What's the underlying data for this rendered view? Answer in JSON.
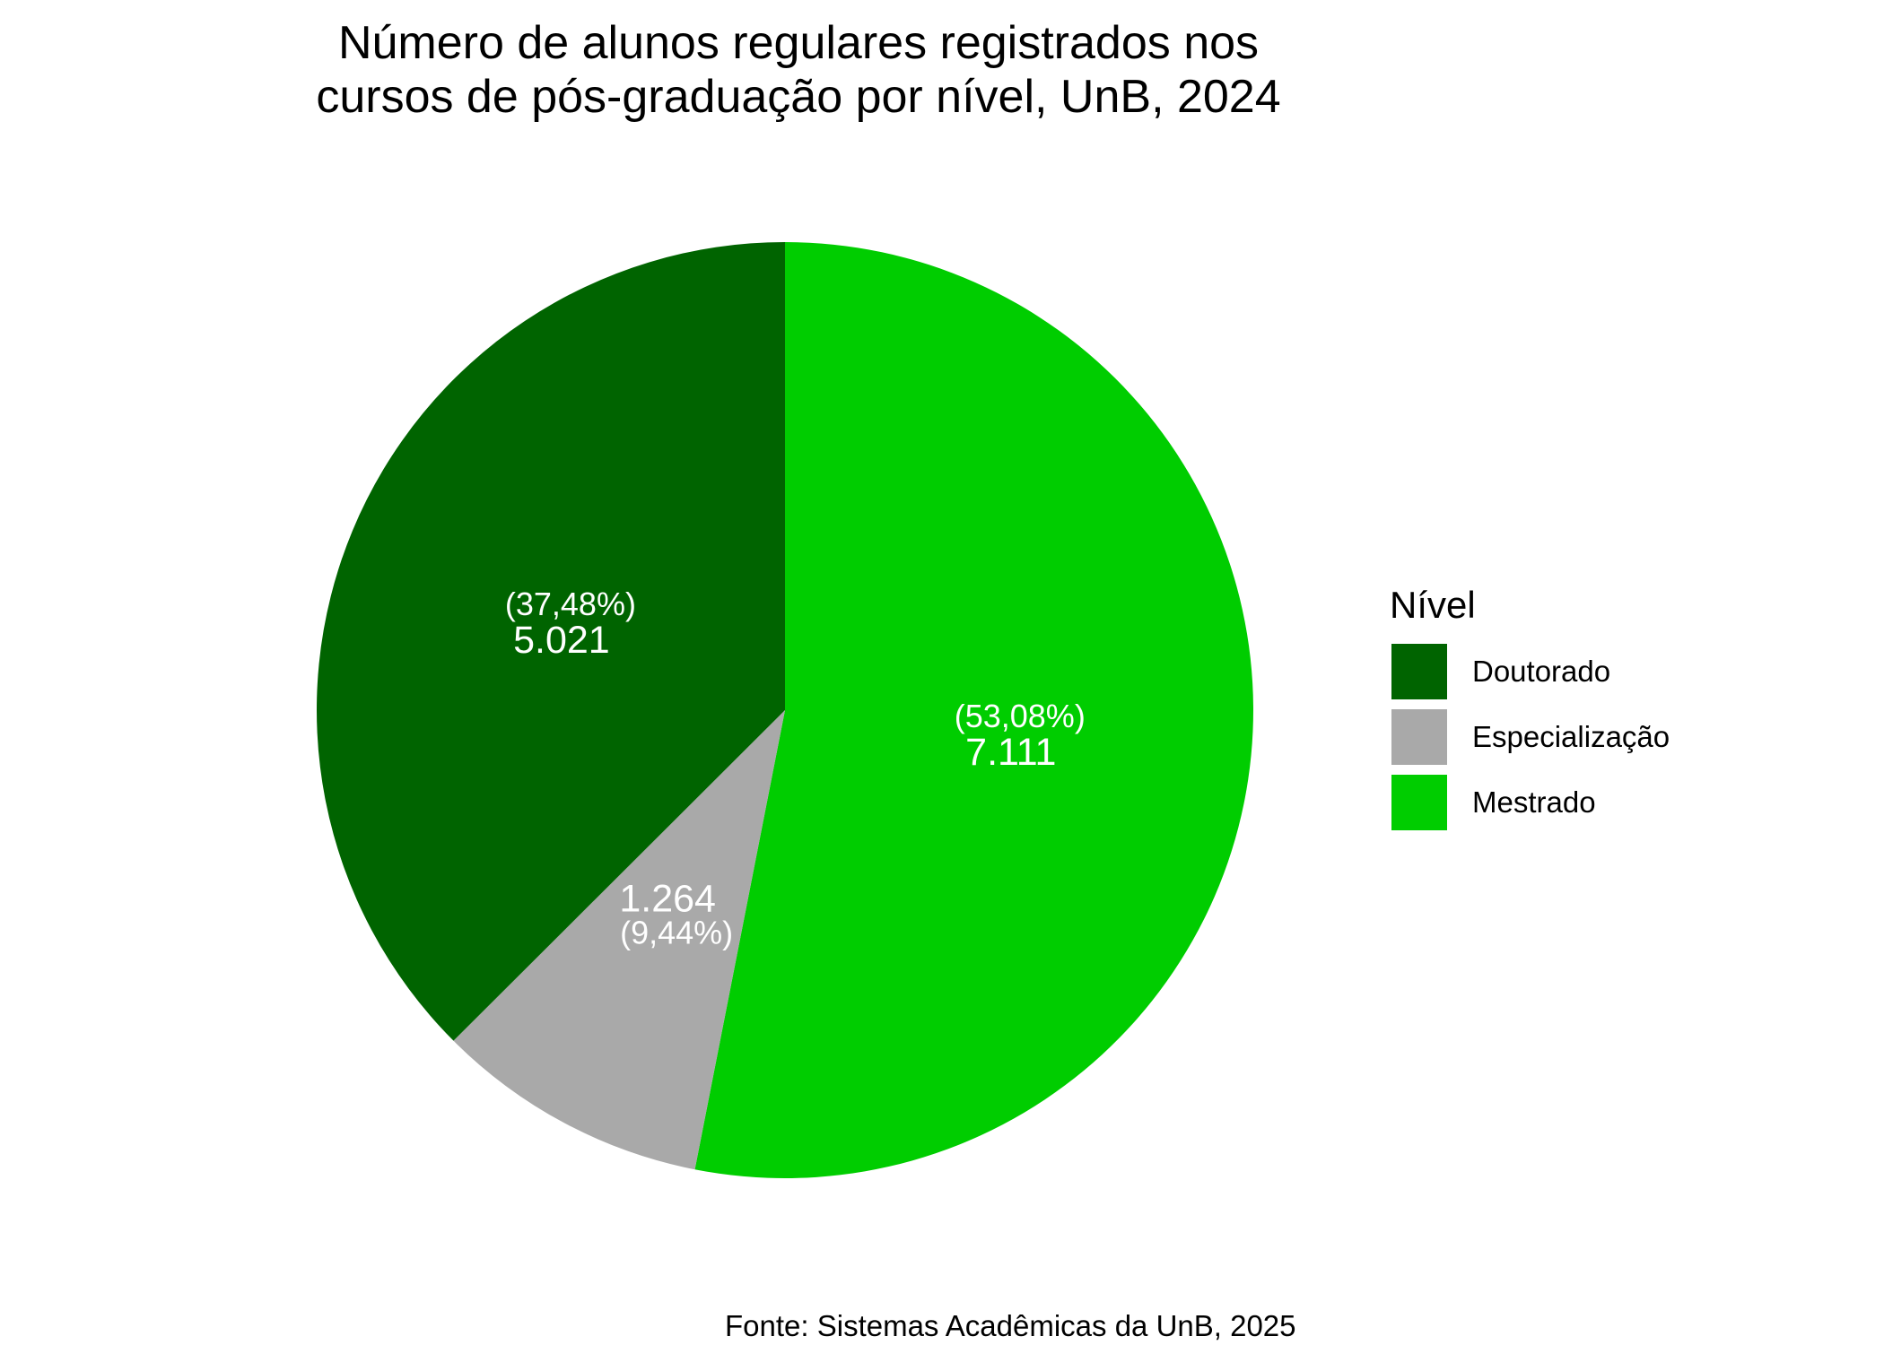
{
  "chart_data": {
    "type": "pie",
    "title": [
      "Número de alunos regulares registrados nos",
      "cursos de pós-graduação por nível, UnB, 2024"
    ],
    "categories": [
      "Doutorado",
      "Especialização",
      "Mestrado"
    ],
    "values": [
      5021,
      1264,
      7111
    ],
    "value_labels": [
      "5.021",
      "1.264",
      "7.111"
    ],
    "percent_labels": [
      "(37,48%)",
      "(9,44%)",
      "(53,08%)"
    ],
    "colors": [
      "#006400",
      "#A9A9A9",
      "#00CD00"
    ],
    "legend": {
      "title": "Nível",
      "position": "right"
    },
    "caption": "Fonte: Sistemas Acadêmicas da UnB, 2025"
  }
}
